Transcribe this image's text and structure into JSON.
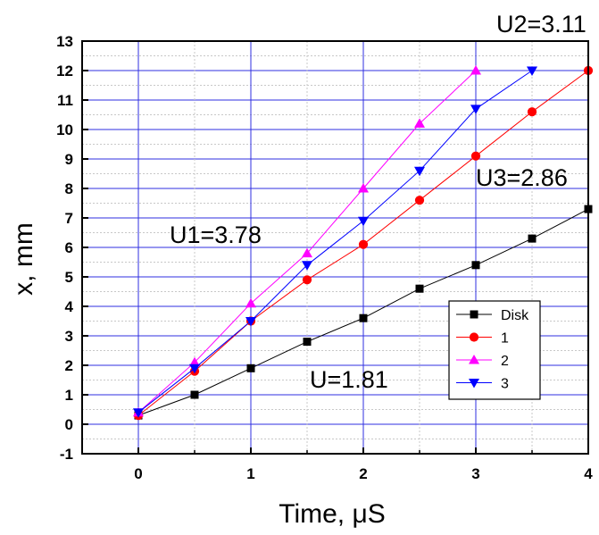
{
  "chart_data": {
    "type": "line",
    "xlabel": "Time, μS",
    "ylabel": "x, mm",
    "xlim": [
      -0.5,
      4
    ],
    "ylim": [
      -1,
      13
    ],
    "xticks": [
      "0",
      "1",
      "2",
      "3",
      "4"
    ],
    "yticks": [
      "-1",
      "0",
      "1",
      "2",
      "3",
      "4",
      "5",
      "6",
      "7",
      "8",
      "9",
      "10",
      "11",
      "12",
      "13"
    ],
    "grid": true,
    "legend_position": "lower-right",
    "series": [
      {
        "name": "Disk",
        "color": "#000000",
        "marker": "square",
        "x": [
          0,
          0.5,
          1,
          1.5,
          2,
          2.5,
          3,
          3.5,
          4
        ],
        "y": [
          0.3,
          1.0,
          1.9,
          2.8,
          3.6,
          4.6,
          5.4,
          6.3,
          7.3
        ]
      },
      {
        "name": "1",
        "color": "#ff0000",
        "marker": "circle",
        "x": [
          0,
          0.5,
          1,
          1.5,
          2,
          2.5,
          3,
          3.5,
          4
        ],
        "y": [
          0.3,
          1.8,
          3.5,
          4.9,
          6.1,
          7.6,
          9.1,
          10.6,
          12.0
        ]
      },
      {
        "name": "2",
        "color": "#ff00ff",
        "marker": "triangle-up",
        "x": [
          0,
          0.5,
          1,
          1.5,
          2,
          2.5,
          3
        ],
        "y": [
          0.4,
          2.1,
          4.1,
          5.8,
          8.0,
          10.2,
          12.0
        ]
      },
      {
        "name": "3",
        "color": "#0000ff",
        "marker": "triangle-down",
        "x": [
          0,
          0.5,
          1,
          1.5,
          2,
          2.5,
          3,
          3.5
        ],
        "y": [
          0.4,
          1.9,
          3.5,
          5.4,
          6.9,
          8.6,
          10.7,
          12.0
        ]
      }
    ],
    "annotations": [
      {
        "text": "U2=3.11"
      },
      {
        "text": "U3=2.86"
      },
      {
        "text": "U1=3.78"
      },
      {
        "text": "U=1.81"
      }
    ]
  }
}
